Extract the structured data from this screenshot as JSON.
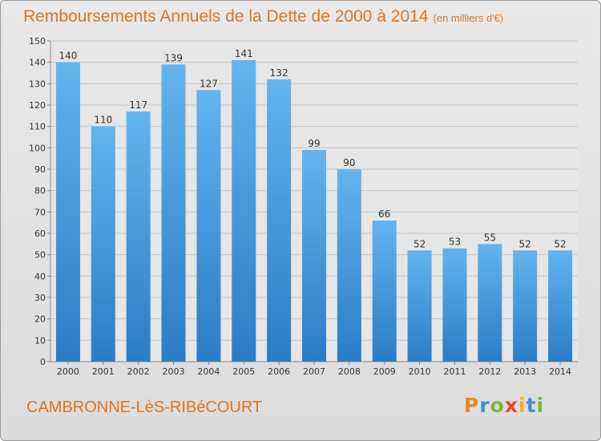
{
  "header": {
    "title": "Remboursements Annuels de la Dette de 2000 à 2014",
    "unit": "(en milliers d'€)"
  },
  "footer": {
    "commune": "CAMBRONNE-LèS-RIBéCOURT",
    "logo_text": "Proxiti"
  },
  "colors": {
    "title": "#e0741f",
    "bar_light": "#63b4ee",
    "bar_dark": "#2a7cc6",
    "background": "#e3e3e3"
  },
  "chart_data": {
    "type": "bar",
    "title": "Remboursements Annuels de la Dette de 2000 à 2014",
    "xlabel": "",
    "ylabel": "",
    "categories": [
      "2000",
      "2001",
      "2002",
      "2003",
      "2004",
      "2005",
      "2006",
      "2007",
      "2008",
      "2009",
      "2010",
      "2011",
      "2012",
      "2013",
      "2014"
    ],
    "values": [
      140,
      110,
      117,
      139,
      127,
      141,
      132,
      99,
      90,
      66,
      52,
      53,
      55,
      52,
      52
    ],
    "ylim": [
      0,
      150
    ],
    "yticks": [
      0,
      10,
      20,
      30,
      40,
      50,
      60,
      70,
      80,
      90,
      100,
      110,
      120,
      130,
      140,
      150
    ],
    "grid": true,
    "data_labels": true
  }
}
